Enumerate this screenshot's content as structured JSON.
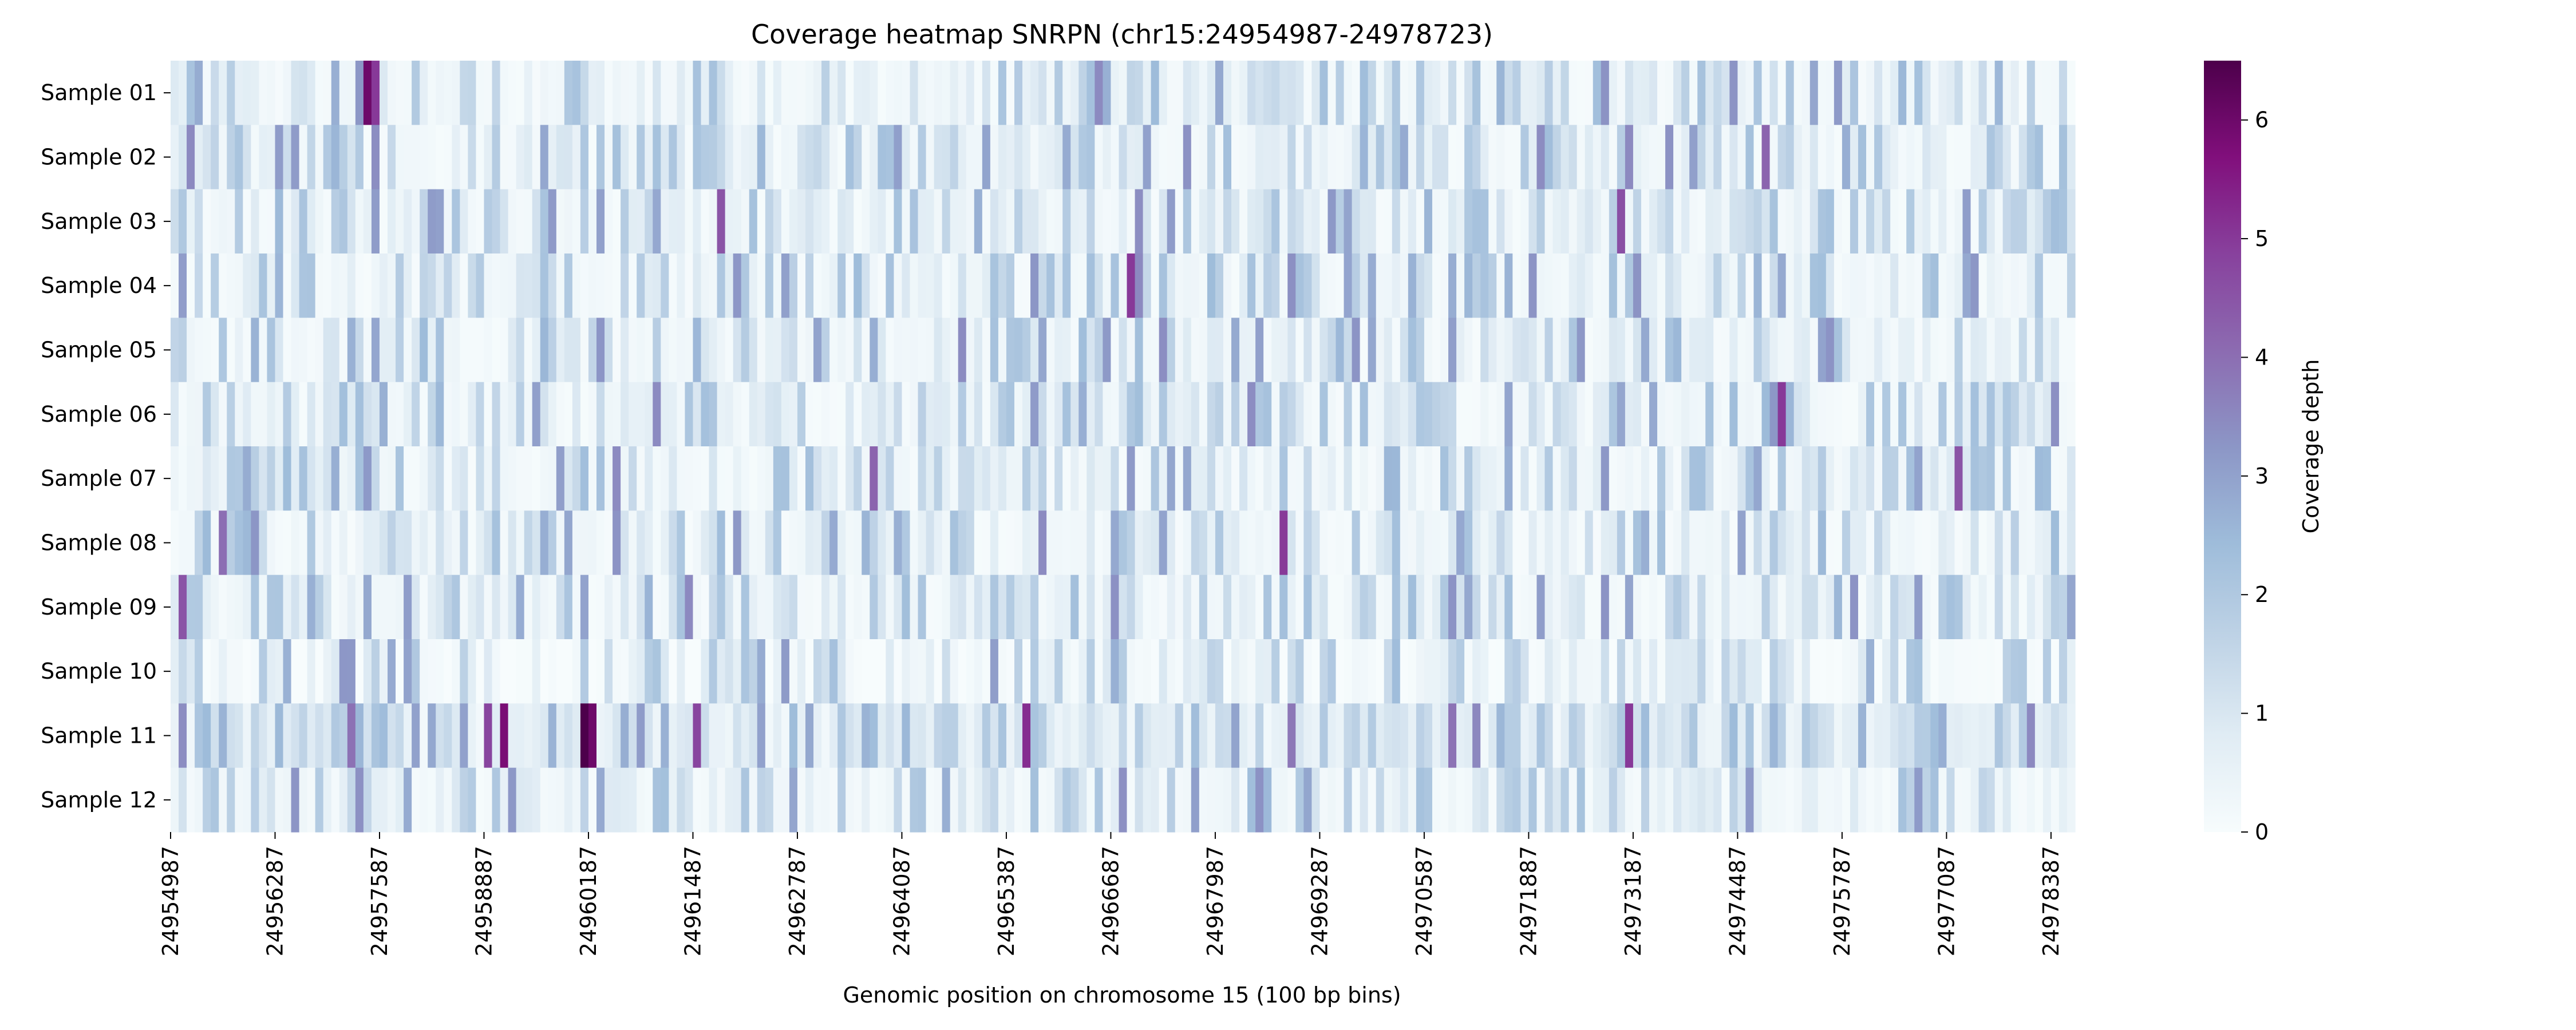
{
  "chart_data": {
    "type": "heatmap",
    "title": "Coverage heatmap SNRPN (chr15:24954987-24978723)",
    "xlabel": "Genomic position on chromosome 15 (100 bp bins)",
    "ylabel": "",
    "colorbar_label": "Coverage depth",
    "colormap": "BuPu",
    "colormap_stops": [
      "#f7fcfd",
      "#e0ecf4",
      "#bfd3e6",
      "#9ebcda",
      "#8c96c6",
      "#8c6bb1",
      "#88419d",
      "#810f7c",
      "#4d004b"
    ],
    "color_range": [
      0,
      6.5
    ],
    "colorbar_ticks": [
      0,
      1,
      2,
      3,
      4,
      5,
      6
    ],
    "rows": [
      "Sample 01",
      "Sample 02",
      "Sample 03",
      "Sample 04",
      "Sample 05",
      "Sample 06",
      "Sample 07",
      "Sample 08",
      "Sample 09",
      "Sample 10",
      "Sample 11",
      "Sample 12"
    ],
    "bin_size_bp": 100,
    "x_range": [
      24954987,
      24978723
    ],
    "x_tick_labels": [
      "24954987",
      "24956287",
      "24957587",
      "24958887",
      "24960187",
      "24961487",
      "24962787",
      "24964087",
      "24965387",
      "24966687",
      "24967987",
      "24969287",
      "24970587",
      "24971887",
      "24973187",
      "24974487",
      "24975787",
      "24977087",
      "24978387"
    ],
    "hotspots": [
      {
        "row": "Sample 01",
        "x": 24957387,
        "value": 6.0
      },
      {
        "row": "Sample 01",
        "x": 24957487,
        "value": 5.0
      },
      {
        "row": "Sample 02",
        "x": 24955187,
        "value": 3.5
      },
      {
        "row": "Sample 02",
        "x": 24974787,
        "value": 4.2
      },
      {
        "row": "Sample 03",
        "x": 24961787,
        "value": 4.5
      },
      {
        "row": "Sample 03",
        "x": 24972987,
        "value": 4.6
      },
      {
        "row": "Sample 04",
        "x": 24966887,
        "value": 5.0
      },
      {
        "row": "Sample 04",
        "x": 24966987,
        "value": 3.5
      },
      {
        "row": "Sample 05",
        "x": 24972487,
        "value": 3.2
      },
      {
        "row": "Sample 06",
        "x": 24974987,
        "value": 5.0
      },
      {
        "row": "Sample 07",
        "x": 24963687,
        "value": 4.2
      },
      {
        "row": "Sample 07",
        "x": 24977187,
        "value": 4.5
      },
      {
        "row": "Sample 08",
        "x": 24955587,
        "value": 4.0
      },
      {
        "row": "Sample 08",
        "x": 24968787,
        "value": 5.0
      },
      {
        "row": "Sample 09",
        "x": 24955087,
        "value": 4.5
      },
      {
        "row": "Sample 09",
        "x": 24961387,
        "value": 3.5
      },
      {
        "row": "Sample 10",
        "x": 24957887,
        "value": 3.0
      },
      {
        "row": "Sample 11",
        "x": 24958887,
        "value": 4.8
      },
      {
        "row": "Sample 11",
        "x": 24959087,
        "value": 5.8
      },
      {
        "row": "Sample 11",
        "x": 24960087,
        "value": 6.5
      },
      {
        "row": "Sample 11",
        "x": 24960187,
        "value": 6.0
      },
      {
        "row": "Sample 11",
        "x": 24961487,
        "value": 4.8
      },
      {
        "row": "Sample 11",
        "x": 24965587,
        "value": 5.2
      },
      {
        "row": "Sample 11",
        "x": 24973087,
        "value": 5.0
      },
      {
        "row": "Sample 12",
        "x": 24959187,
        "value": 3.2
      }
    ]
  }
}
